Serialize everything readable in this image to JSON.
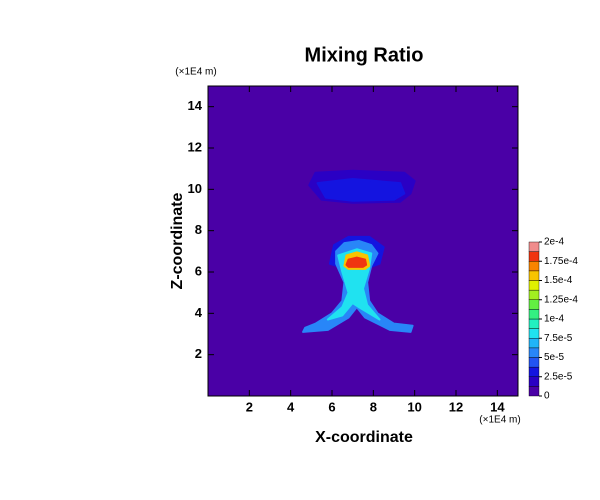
{
  "chart_data": {
    "type": "contour",
    "title": "Mixing Ratio",
    "xlabel": "X-coordinate",
    "ylabel": "Z-coordinate",
    "x_unit": "(×1E4 m)",
    "y_unit": "(×1E4 m)",
    "xlim": [
      0,
      15
    ],
    "ylim": [
      0,
      15
    ],
    "xticks": [
      2,
      4,
      6,
      8,
      10,
      12,
      14
    ],
    "yticks": [
      2,
      4,
      6,
      8,
      10,
      12,
      14
    ],
    "levels": [
      0,
      1.25e-05,
      2.5e-05,
      3.75e-05,
      5e-05,
      6.25e-05,
      7.5e-05,
      8.75e-05,
      0.0001,
      0.0001125,
      0.000125,
      0.0001375,
      0.00015,
      0.0001625,
      0.000175,
      0.0001875,
      0.0002
    ],
    "colors": [
      "#4a00a6",
      "#2a00c4",
      "#1414e0",
      "#2254f2",
      "#2886f8",
      "#20b4f8",
      "#20e2f0",
      "#22f0c0",
      "#34f082",
      "#62f042",
      "#a2f020",
      "#e0f000",
      "#f8c400",
      "#f88400",
      "#f03410",
      "#f08c8c"
    ],
    "colorbar_ticks": [
      0,
      {
        "value": 2.5e-05,
        "label": "2.5e-5"
      },
      {
        "value": 5e-05,
        "label": "5e-5"
      },
      {
        "value": 7.5e-05,
        "label": "7.5e-5"
      },
      {
        "value": 0.0001,
        "label": "1e-4"
      },
      {
        "value": 0.000125,
        "label": "1.25e-4"
      },
      {
        "value": 0.00015,
        "label": "1.5e-4"
      },
      {
        "value": 0.000175,
        "label": "1.75e-4"
      },
      {
        "value": 0.0002,
        "label": "2e-4"
      }
    ],
    "regions": [
      {
        "level": 1.25e-05,
        "x": [
          4.9,
          5.2,
          7,
          9.5,
          10,
          9.8,
          9.3,
          7,
          5.5
        ],
        "z": [
          10.2,
          10.8,
          10.9,
          10.8,
          10.4,
          9.8,
          9.4,
          9.35,
          9.5
        ]
      },
      {
        "level": 2.5e-05,
        "x": [
          5.3,
          7,
          9.3,
          9.5,
          9,
          7,
          5.7
        ],
        "z": [
          10.3,
          10.5,
          10.3,
          9.8,
          9.5,
          9.45,
          9.6
        ]
      },
      {
        "level": 2.5e-05,
        "x": [
          5.9,
          6.1,
          6.8,
          7.8,
          8.5,
          8.3,
          7.2
        ],
        "z": [
          6.4,
          7.3,
          7.7,
          7.7,
          7.2,
          6.4,
          6.0
        ]
      },
      {
        "level": 5e-05,
        "x": [
          4.7,
          5.2,
          6.0,
          6.5,
          6.6,
          6.2,
          6.2,
          6.6,
          7.3,
          7.9,
          8.2,
          7.9,
          7.7,
          7.8,
          8.2,
          9.0,
          9.9,
          9.8,
          8.8,
          7.6,
          7.2,
          6.8,
          5.8,
          4.6
        ],
        "z": [
          3.3,
          3.5,
          4.0,
          4.6,
          5.5,
          6.4,
          7.0,
          7.4,
          7.5,
          7.3,
          6.9,
          6.3,
          5.5,
          4.6,
          4.0,
          3.5,
          3.4,
          3.1,
          3.2,
          3.8,
          4.3,
          3.8,
          3.2,
          3.1
        ]
      },
      {
        "level": 7.5e-05,
        "x": [
          6.3,
          6.5,
          6.8,
          6.5,
          5.8,
          6.5,
          7.0,
          7.3,
          8.3,
          7.7,
          7.5,
          7.8,
          7.9,
          7.2
        ],
        "z": [
          6.8,
          6.0,
          5.0,
          4.3,
          3.7,
          3.9,
          4.5,
          4.3,
          3.7,
          4.4,
          5.2,
          6.2,
          6.9,
          7.1
        ]
      },
      {
        "level": 0.00015,
        "x": [
          6.6,
          6.7,
          7.2,
          7.7,
          7.8,
          7.6,
          6.8
        ],
        "z": [
          6.3,
          6.8,
          6.95,
          6.8,
          6.3,
          6.15,
          6.15
        ]
      },
      {
        "level": 0.000175,
        "x": [
          6.7,
          6.8,
          7.2,
          7.6,
          7.65,
          7.5,
          6.8
        ],
        "z": [
          6.35,
          6.6,
          6.7,
          6.6,
          6.35,
          6.25,
          6.25
        ]
      }
    ]
  }
}
